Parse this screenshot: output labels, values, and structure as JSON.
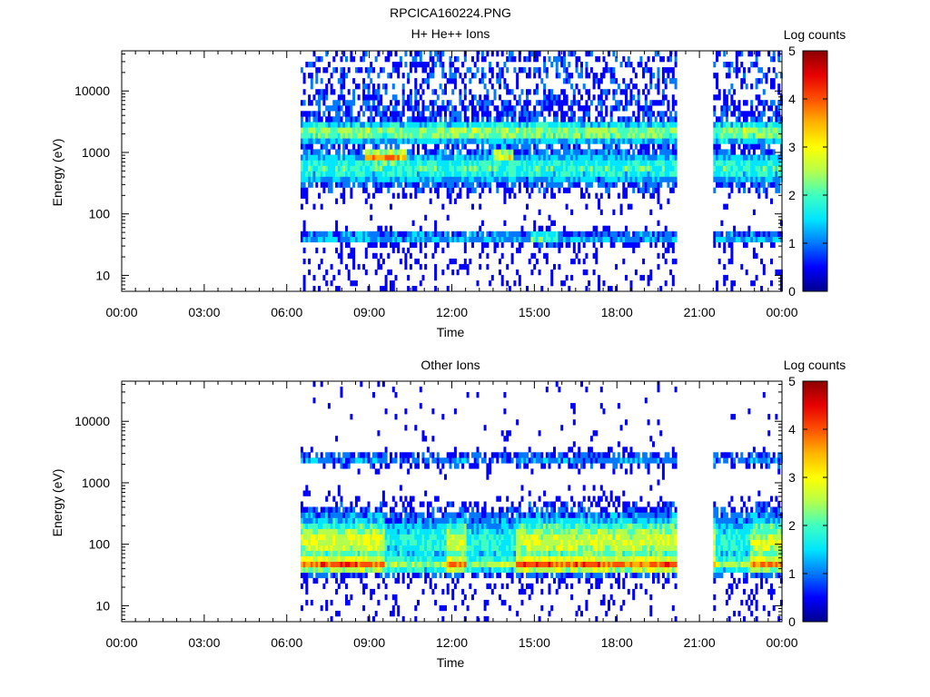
{
  "figure": {
    "title": "RPCICA160224.PNG"
  },
  "chart_data": [
    {
      "type": "heatmap",
      "title": "H+ He++ Ions",
      "xlabel": "Time",
      "ylabel": "Energy (eV)",
      "y_scale": "log",
      "x_ticks": [
        "00:00",
        "03:00",
        "06:00",
        "09:00",
        "12:00",
        "15:00",
        "18:00",
        "21:00",
        "00:00"
      ],
      "y_ticks": [
        "10",
        "100",
        "1000",
        "10000"
      ],
      "xlim_hours": [
        0,
        24
      ],
      "ylim": [
        5.5,
        45000
      ],
      "colorbar": {
        "label": "Log counts",
        "ticks": [
          "0",
          "1",
          "2",
          "3",
          "4",
          "5"
        ],
        "range": [
          0,
          5
        ]
      },
      "data_intervals_hours": [
        [
          6.5,
          20.1
        ],
        [
          21.5,
          24.0
        ]
      ],
      "features": [
        {
          "energy_eV": [
            1600,
            2800
          ],
          "log_counts": 2.5,
          "desc_band": "upper"
        },
        {
          "energy_eV": [
            550,
            1100
          ],
          "log_counts": 3.6,
          "hours": [
            8.8,
            10.2
          ]
        },
        {
          "energy_eV": [
            300,
            800
          ],
          "log_counts": 2.2
        },
        {
          "energy_eV": [
            35,
            50
          ],
          "log_counts": 1.5
        }
      ],
      "colors": [
        "#00008c",
        "#0000ff",
        "#0078ff",
        "#00e6ff",
        "#40ffc0",
        "#b4ff4c",
        "#ffff00",
        "#ffb400",
        "#ff5000",
        "#e60000",
        "#8c0000"
      ]
    },
    {
      "type": "heatmap",
      "title": "Other Ions",
      "xlabel": "Time",
      "ylabel": "Energy (eV)",
      "y_scale": "log",
      "x_ticks": [
        "00:00",
        "03:00",
        "06:00",
        "09:00",
        "12:00",
        "15:00",
        "18:00",
        "21:00",
        "00:00"
      ],
      "y_ticks": [
        "10",
        "100",
        "1000",
        "10000"
      ],
      "xlim_hours": [
        0,
        24
      ],
      "ylim": [
        5.5,
        45000
      ],
      "colorbar": {
        "label": "Log counts",
        "ticks": [
          "0",
          "1",
          "2",
          "3",
          "4",
          "5"
        ],
        "range": [
          0,
          5
        ]
      },
      "data_intervals_hours": [
        [
          6.5,
          20.1
        ],
        [
          21.5,
          24.0
        ]
      ],
      "features": [
        {
          "energy_eV": [
            30,
            60
          ],
          "log_counts": 3.8
        },
        {
          "energy_eV": [
            60,
            400
          ],
          "log_counts": 2.6
        },
        {
          "energy_eV": [
            1800,
            3000
          ],
          "log_counts": 1.2
        }
      ],
      "colors": [
        "#00008c",
        "#0000ff",
        "#0078ff",
        "#00e6ff",
        "#40ffc0",
        "#b4ff4c",
        "#ffff00",
        "#ffb400",
        "#ff5000",
        "#e60000",
        "#8c0000"
      ]
    }
  ]
}
